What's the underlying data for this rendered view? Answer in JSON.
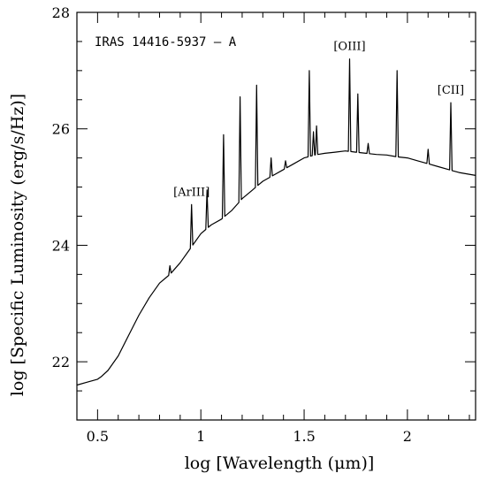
{
  "chart_data": {
    "type": "line",
    "title": "",
    "annotation": "IRAS 14416-5937 – A",
    "xlabel": "log [Wavelength (μm)]",
    "ylabel": "log [Specific Luminosity (erg/s/Hz)]",
    "xlim": [
      0.4,
      2.33
    ],
    "ylim": [
      21.0,
      28.0
    ],
    "x_ticks": [
      0.5,
      1,
      1.5,
      2
    ],
    "x_tick_labels": [
      "0.5",
      "1",
      "1.5",
      "2"
    ],
    "y_ticks": [
      22,
      24,
      26,
      28
    ],
    "y_tick_labels": [
      "22",
      "24",
      "26",
      "28"
    ],
    "grid": false,
    "line_color": "#000000",
    "continuum": {
      "x": [
        0.4,
        0.45,
        0.5,
        0.52,
        0.55,
        0.6,
        0.65,
        0.7,
        0.75,
        0.8,
        0.85,
        0.9,
        0.95,
        1.0,
        1.05,
        1.1,
        1.15,
        1.2,
        1.25,
        1.3,
        1.35,
        1.4,
        1.45,
        1.5,
        1.55,
        1.6,
        1.65,
        1.7,
        1.75,
        1.8,
        1.85,
        1.9,
        1.95,
        2.0,
        2.05,
        2.1,
        2.15,
        2.2,
        2.25,
        2.33
      ],
      "y": [
        21.6,
        21.65,
        21.7,
        21.75,
        21.85,
        22.1,
        22.45,
        22.8,
        23.1,
        23.35,
        23.5,
        23.7,
        23.95,
        24.2,
        24.35,
        24.45,
        24.6,
        24.8,
        24.95,
        25.1,
        25.2,
        25.3,
        25.4,
        25.5,
        25.55,
        25.58,
        25.6,
        25.62,
        25.6,
        25.58,
        25.56,
        25.55,
        25.52,
        25.5,
        25.45,
        25.4,
        25.35,
        25.3,
        25.25,
        25.2
      ]
    },
    "emission_lines": [
      {
        "x": 0.85,
        "peak": 23.65
      },
      {
        "x": 0.955,
        "peak": 24.7,
        "label": "[ArIII]"
      },
      {
        "x": 1.03,
        "peak": 24.95
      },
      {
        "x": 1.11,
        "peak": 25.9
      },
      {
        "x": 1.19,
        "peak": 26.55
      },
      {
        "x": 1.27,
        "peak": 26.75
      },
      {
        "x": 1.34,
        "peak": 25.5
      },
      {
        "x": 1.41,
        "peak": 25.45
      },
      {
        "x": 1.525,
        "peak": 27.0
      },
      {
        "x": 1.545,
        "peak": 25.95
      },
      {
        "x": 1.56,
        "peak": 26.05
      },
      {
        "x": 1.72,
        "peak": 27.2,
        "label": "[OIII]"
      },
      {
        "x": 1.76,
        "peak": 26.6
      },
      {
        "x": 1.81,
        "peak": 25.75
      },
      {
        "x": 1.95,
        "peak": 27.0
      },
      {
        "x": 2.1,
        "peak": 25.65
      },
      {
        "x": 2.21,
        "peak": 26.45,
        "label": "[CII]"
      }
    ]
  }
}
